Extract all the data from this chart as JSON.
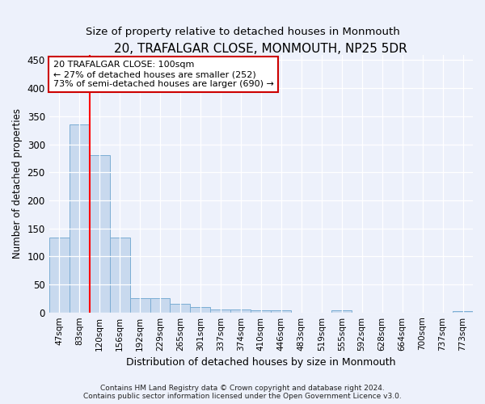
{
  "title": "20, TRAFALGAR CLOSE, MONMOUTH, NP25 5DR",
  "subtitle": "Size of property relative to detached houses in Monmouth",
  "xlabel": "Distribution of detached houses by size in Monmouth",
  "ylabel": "Number of detached properties",
  "categories": [
    "47sqm",
    "83sqm",
    "120sqm",
    "156sqm",
    "192sqm",
    "229sqm",
    "265sqm",
    "301sqm",
    "337sqm",
    "374sqm",
    "410sqm",
    "446sqm",
    "483sqm",
    "519sqm",
    "555sqm",
    "592sqm",
    "628sqm",
    "664sqm",
    "700sqm",
    "737sqm",
    "773sqm"
  ],
  "values": [
    133,
    335,
    280,
    133,
    25,
    25,
    15,
    10,
    6,
    6,
    4,
    4,
    0,
    0,
    4,
    0,
    0,
    0,
    0,
    0,
    3
  ],
  "bar_color": "#c8d9ee",
  "bar_edge_color": "#7badd4",
  "bar_edge_width": 0.7,
  "red_line_x": 1.5,
  "annotation_line1": "20 TRAFALGAR CLOSE: 100sqm",
  "annotation_line2": "← 27% of detached houses are smaller (252)",
  "annotation_line3": "73% of semi-detached houses are larger (690) →",
  "annotation_box_color": "white",
  "annotation_box_edge": "#cc0000",
  "ylim": [
    0,
    460
  ],
  "yticks": [
    0,
    50,
    100,
    150,
    200,
    250,
    300,
    350,
    400,
    450
  ],
  "footer_line1": "Contains HM Land Registry data © Crown copyright and database right 2024.",
  "footer_line2": "Contains public sector information licensed under the Open Government Licence v3.0.",
  "background_color": "#edf1fb",
  "plot_bg_color": "#edf1fb",
  "title_fontsize": 11,
  "subtitle_fontsize": 9.5
}
